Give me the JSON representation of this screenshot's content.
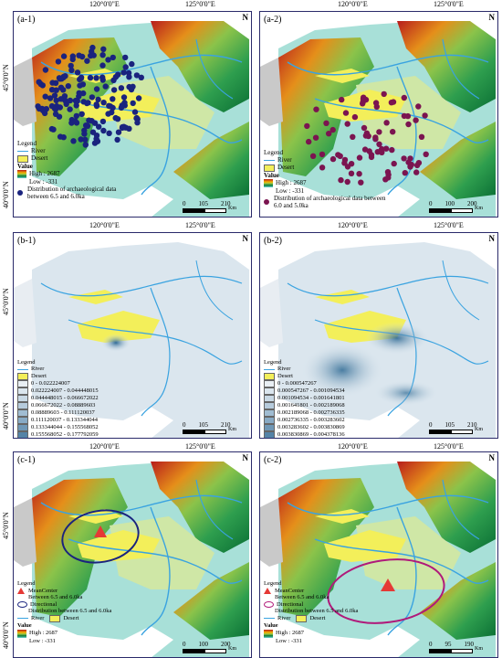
{
  "lon_labels": {
    "left": "120°0'0\"E",
    "right": "125°0'0\"E"
  },
  "lat_labels": {
    "upper": "45°0'0\"N",
    "lower": "40°0'0\"N"
  },
  "north_letter": "N",
  "colors": {
    "river": "#3aa3e0",
    "desert": "#f3ef5a",
    "dem_high": "#b71c1c",
    "dem_mid": "#8bc34a",
    "dem_low": "#6fd3d6",
    "site_a1": "#1a237e",
    "site_a2": "#7b1450",
    "mean_center": "#e53935",
    "ellipse_c1": "#1a237e",
    "ellipse_c2": "#b0197a",
    "density_base": "#dbe6ee",
    "density_high": "#2f6a94"
  },
  "panels": {
    "a1": {
      "label": "(a-1)",
      "legend_title": "Legend",
      "river": "River",
      "desert": "Desert",
      "value": "Value",
      "high": "High : 2687",
      "low": "Low : -331",
      "sites": "Distribution of archaeological data between 6.5 and 6.0ka",
      "scale": [
        "0",
        "105",
        "210"
      ],
      "scale_unit": "Km"
    },
    "a2": {
      "label": "(a-2)",
      "legend_title": "Legend",
      "river": "River",
      "desert": "Desert",
      "value": "Value",
      "high": "High : 2687",
      "low": "Low : -331",
      "sites": "Distribution of archaeological data between 6.0 and 5.0ka",
      "scale": [
        "0",
        "100",
        "200"
      ],
      "scale_unit": "Km"
    },
    "b1": {
      "label": "(b-1)",
      "legend_title": "Legend",
      "river": "River",
      "desert": "Desert",
      "classes": [
        "0 - 0.022224007",
        "0.022224007 - 0.044448015",
        "0.044448015 - 0.066672022",
        "0.066672022 - 0.08889603",
        "0.08889603 - 0.111120037",
        "0.111120037 - 0.133344044",
        "0.133344044 - 0.155568052",
        "0.155568052 - 0.177792059",
        "0.177792059 - 0.200016066"
      ],
      "scale": [
        "0",
        "105",
        "210"
      ],
      "scale_unit": "Km"
    },
    "b2": {
      "label": "(b-2)",
      "legend_title": "Legend",
      "river": "River",
      "desert": "Desert",
      "classes": [
        "0 - 0.000547267",
        "0.000547267 - 0.001094534",
        "0.001094534 - 0.001641801",
        "0.001641801 - 0.002189068",
        "0.002189068 - 0.002736335",
        "0.002736335 - 0.003283602",
        "0.003283602 - 0.003830869",
        "0.003830869 - 0.004378136",
        "0.004378136 - 0.004925403"
      ],
      "scale": [
        "0",
        "105",
        "210"
      ],
      "scale_unit": "Km"
    },
    "c1": {
      "label": "(c-1)",
      "legend_title": "Legend",
      "mean_center": "MeanCenter",
      "mean_center_sub": "Between 6.5 and 6.0ka",
      "directional": "Directional",
      "directional_sub": "Distribution between 6.5 and 6.0ka",
      "river": "River",
      "desert": "Desert",
      "value": "Value",
      "high": "High : 2687",
      "low": "Low : -331",
      "scale": [
        "0",
        "100",
        "200"
      ],
      "scale_unit": "Km"
    },
    "c2": {
      "label": "(c-2)",
      "legend_title": "Legend",
      "mean_center": "MeanCenter",
      "mean_center_sub": "Between 6.5 and 6.0ka",
      "directional": "Directional",
      "directional_sub": "Distribution between 6.5 and 6.0ka",
      "river": "River",
      "desert": "Desert",
      "value": "Value",
      "high": "High : 2687",
      "low": "Low : -331",
      "scale": [
        "0",
        "95",
        "190"
      ],
      "scale_unit": "Km"
    }
  }
}
